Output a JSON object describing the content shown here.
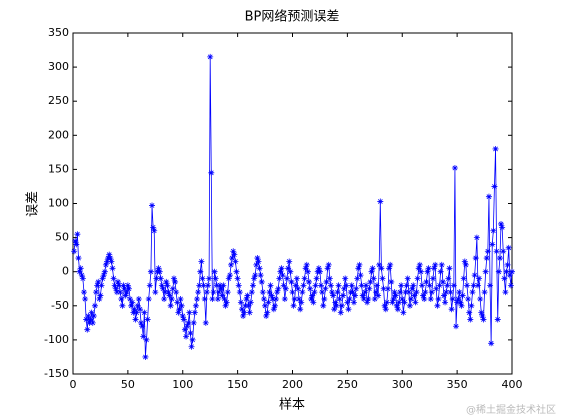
{
  "chart_data": {
    "type": "line",
    "title": "BP网络预测误差",
    "xlabel": "样本",
    "ylabel": "误差",
    "watermark": "@稀土掘金技术社区",
    "xlim": [
      0,
      400
    ],
    "ylim": [
      -150,
      350
    ],
    "xticks": [
      0,
      50,
      100,
      150,
      200,
      250,
      300,
      350,
      400
    ],
    "yticks": [
      -150,
      -100,
      -50,
      0,
      50,
      100,
      150,
      200,
      250,
      300,
      350
    ],
    "grid": false,
    "marker": "*",
    "series": [
      {
        "color": "#0000ff",
        "x": [
          1,
          2,
          3,
          4,
          5,
          6,
          7,
          8,
          9,
          10,
          11,
          12,
          13,
          14,
          15,
          16,
          17,
          18,
          19,
          20,
          21,
          22,
          23,
          24,
          25,
          26,
          27,
          28,
          29,
          30,
          31,
          32,
          33,
          34,
          35,
          36,
          37,
          38,
          39,
          40,
          41,
          42,
          43,
          44,
          45,
          46,
          47,
          48,
          49,
          50,
          51,
          52,
          53,
          54,
          55,
          56,
          57,
          58,
          59,
          60,
          61,
          62,
          63,
          64,
          65,
          66,
          67,
          68,
          69,
          70,
          71,
          72,
          73,
          74,
          75,
          76,
          77,
          78,
          79,
          80,
          81,
          82,
          83,
          84,
          85,
          86,
          87,
          88,
          89,
          90,
          91,
          92,
          93,
          94,
          95,
          96,
          97,
          98,
          99,
          100,
          101,
          102,
          103,
          104,
          105,
          106,
          107,
          108,
          109,
          110,
          111,
          112,
          113,
          114,
          115,
          116,
          117,
          118,
          119,
          120,
          121,
          122,
          123,
          124,
          125,
          126,
          127,
          128,
          129,
          130,
          131,
          132,
          133,
          134,
          135,
          136,
          137,
          138,
          139,
          140,
          141,
          142,
          143,
          144,
          145,
          146,
          147,
          148,
          149,
          150,
          151,
          152,
          153,
          154,
          155,
          156,
          157,
          158,
          159,
          160,
          161,
          162,
          163,
          164,
          165,
          166,
          167,
          168,
          169,
          170,
          171,
          172,
          173,
          174,
          175,
          176,
          177,
          178,
          179,
          180,
          181,
          182,
          183,
          184,
          185,
          186,
          187,
          188,
          189,
          190,
          191,
          192,
          193,
          194,
          195,
          196,
          197,
          198,
          199,
          200,
          201,
          202,
          203,
          204,
          205,
          206,
          207,
          208,
          209,
          210,
          211,
          212,
          213,
          214,
          215,
          216,
          217,
          218,
          219,
          220,
          221,
          222,
          223,
          224,
          225,
          226,
          227,
          228,
          229,
          230,
          231,
          232,
          233,
          234,
          235,
          236,
          237,
          238,
          239,
          240,
          241,
          242,
          243,
          244,
          245,
          246,
          247,
          248,
          249,
          250,
          251,
          252,
          253,
          254,
          255,
          256,
          257,
          258,
          259,
          260,
          261,
          262,
          263,
          264,
          265,
          266,
          267,
          268,
          269,
          270,
          271,
          272,
          273,
          274,
          275,
          276,
          277,
          278,
          279,
          280,
          281,
          282,
          283,
          284,
          285,
          286,
          287,
          288,
          289,
          290,
          291,
          292,
          293,
          294,
          295,
          296,
          297,
          298,
          299,
          300,
          301,
          302,
          303,
          304,
          305,
          306,
          307,
          308,
          309,
          310,
          311,
          312,
          313,
          314,
          315,
          316,
          317,
          318,
          319,
          320,
          321,
          322,
          323,
          324,
          325,
          326,
          327,
          328,
          329,
          330,
          331,
          332,
          333,
          334,
          335,
          336,
          337,
          338,
          339,
          340,
          341,
          342,
          343,
          344,
          345,
          346,
          347,
          348,
          349,
          350,
          351,
          352,
          353,
          354,
          355,
          356,
          357,
          358,
          359,
          360,
          361,
          362,
          363,
          364,
          365,
          366,
          367,
          368,
          369,
          370,
          371,
          372,
          373,
          374,
          375,
          376,
          377,
          378,
          379,
          380,
          381,
          382,
          383,
          384,
          385,
          386,
          387,
          388,
          389,
          390,
          391,
          392,
          393,
          394,
          395,
          396,
          397,
          398,
          399,
          400
        ],
        "values": [
          30,
          45,
          40,
          55,
          20,
          0,
          5,
          -5,
          -10,
          -30,
          -40,
          -70,
          -85,
          -65,
          -75,
          -70,
          -60,
          -75,
          -65,
          -50,
          -30,
          -20,
          -15,
          -40,
          -35,
          -20,
          -10,
          -5,
          0,
          10,
          15,
          20,
          25,
          20,
          15,
          5,
          -10,
          -20,
          -25,
          -30,
          -15,
          -20,
          -30,
          -40,
          -50,
          -20,
          -25,
          -35,
          -30,
          -20,
          -25,
          -40,
          -50,
          -45,
          -60,
          -55,
          -70,
          -60,
          -50,
          -40,
          -55,
          -75,
          -80,
          -95,
          -60,
          -125,
          -100,
          -70,
          -40,
          -20,
          0,
          97,
          65,
          60,
          -30,
          -10,
          0,
          5,
          0,
          -10,
          -20,
          -25,
          -40,
          -30,
          -15,
          -20,
          -30,
          -35,
          -50,
          -40,
          -25,
          -10,
          -15,
          -30,
          -45,
          -60,
          -55,
          -40,
          -50,
          -65,
          -70,
          -85,
          -95,
          -80,
          -75,
          -60,
          -90,
          -110,
          -100,
          -75,
          -60,
          -50,
          -40,
          -30,
          -20,
          0,
          15,
          -10,
          -20,
          -40,
          -75,
          -30,
          -20,
          -10,
          315,
          145,
          -40,
          -30,
          0,
          -10,
          -20,
          -40,
          -30,
          -20,
          -25,
          -35,
          -20,
          -40,
          -50,
          -45,
          -30,
          -10,
          -5,
          10,
          20,
          30,
          25,
          15,
          0,
          -10,
          -20,
          -30,
          -45,
          -55,
          -65,
          -60,
          -50,
          -40,
          -35,
          -50,
          -60,
          -45,
          -30,
          -20,
          -10,
          -5,
          10,
          20,
          15,
          5,
          -5,
          -15,
          -30,
          -40,
          -50,
          -65,
          -60,
          -45,
          -30,
          -20,
          -35,
          -40,
          -55,
          -50,
          -40,
          -30,
          -25,
          -10,
          0,
          5,
          -5,
          -20,
          -40,
          -25,
          -10,
          5,
          15,
          0,
          -15,
          -30,
          -50,
          -40,
          -20,
          -10,
          -25,
          -40,
          -55,
          -45,
          -30,
          -20,
          -10,
          5,
          10,
          0,
          -15,
          -25,
          -40,
          -35,
          -45,
          -30,
          -20,
          -10,
          0,
          5,
          0,
          -20,
          -30,
          -50,
          -40,
          -25,
          -15,
          5,
          10,
          -10,
          -20,
          -30,
          -35,
          -55,
          -45,
          -50,
          -30,
          -20,
          -40,
          -60,
          -50,
          -35,
          -25,
          -10,
          -20,
          -45,
          -55,
          -40,
          -30,
          -20,
          -30,
          -45,
          -35,
          -25,
          -10,
          5,
          10,
          -5,
          -20,
          -35,
          -40,
          -30,
          -20,
          -45,
          -40,
          -25,
          -15,
          0,
          5,
          -10,
          -40,
          -30,
          -20,
          -35,
          10,
          103,
          5,
          -10,
          -25,
          -50,
          -55,
          -45,
          -25,
          5,
          10,
          -15,
          -45,
          -40,
          -30,
          -35,
          -50,
          -55,
          -45,
          -30,
          -20,
          -40,
          -60,
          -45,
          -30,
          -20,
          -10,
          -30,
          -50,
          -40,
          -25,
          -20,
          -35,
          -45,
          -30,
          -10,
          5,
          10,
          0,
          -20,
          -35,
          -40,
          -30,
          -15,
          0,
          5,
          -20,
          -40,
          -30,
          -10,
          5,
          10,
          -25,
          -50,
          -40,
          -20,
          0,
          10,
          -15,
          -35,
          -45,
          -30,
          -20,
          -10,
          5,
          -30,
          -55,
          -40,
          -20,
          152,
          -80,
          -45,
          -40,
          -30,
          -45,
          -50,
          -35,
          -10,
          15,
          10,
          -20,
          -40,
          -60,
          -70,
          -50,
          -30,
          -20,
          -5,
          20,
          50,
          -20,
          -10,
          -40,
          -60,
          -65,
          -70,
          -30,
          0,
          20,
          30,
          110,
          -20,
          -105,
          40,
          60,
          125,
          180,
          30,
          -70,
          0,
          20,
          70,
          65,
          30,
          -10,
          -30,
          0,
          10,
          35,
          -5,
          -20,
          0
        ]
      }
    ]
  }
}
